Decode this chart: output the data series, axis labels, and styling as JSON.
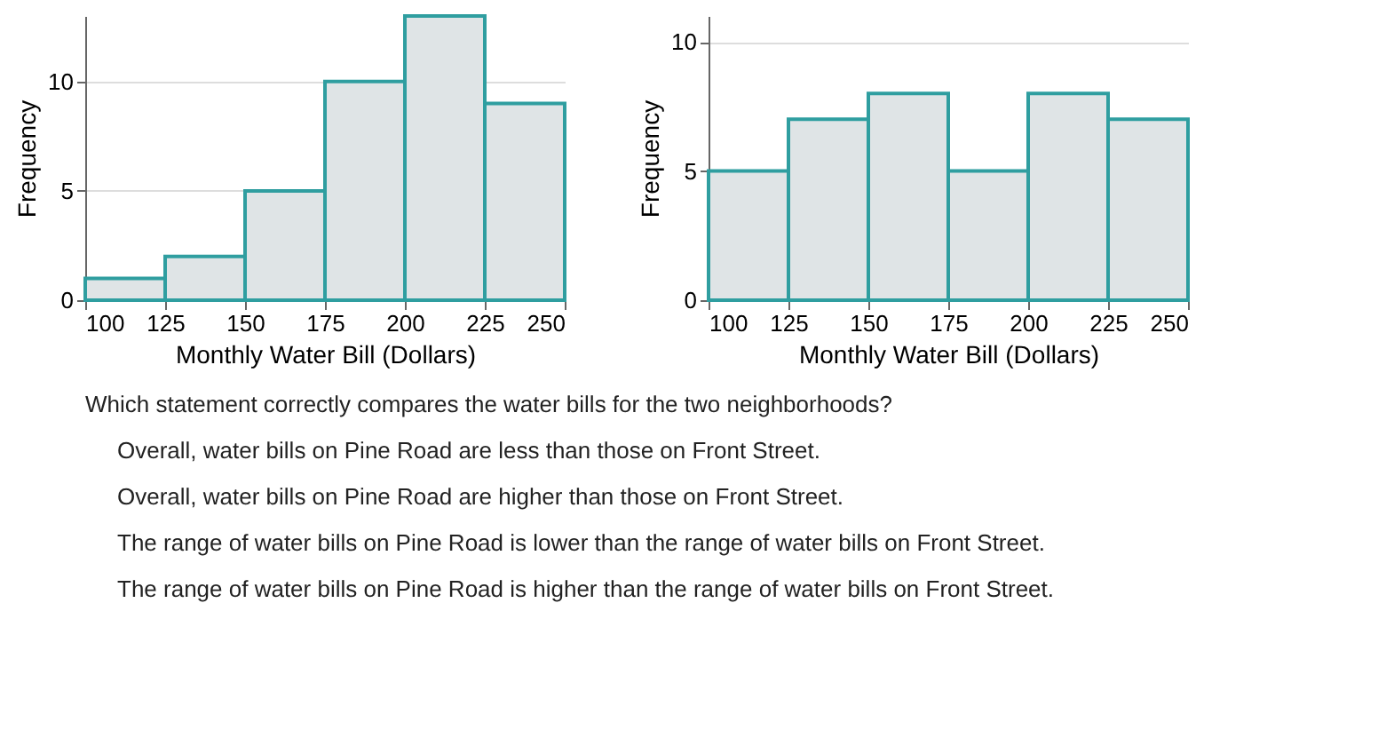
{
  "chart_data": [
    {
      "type": "histogram",
      "bins": [
        100,
        125,
        150,
        175,
        200,
        225,
        250
      ],
      "values": [
        1,
        2,
        5,
        10,
        13,
        9
      ],
      "color": "#dfe4e6",
      "xlabel": "Monthly Water Bill (Dollars)",
      "ylabel": "Frequency",
      "xlim": [
        100,
        250
      ],
      "xticks": [
        100,
        125,
        150,
        175,
        200,
        225,
        250
      ],
      "ylim": [
        0,
        13
      ],
      "yticks": [
        0,
        5,
        10
      ],
      "grid": "y"
    },
    {
      "type": "histogram",
      "bins": [
        100,
        125,
        150,
        175,
        200,
        225,
        250
      ],
      "values": [
        5,
        7,
        8,
        5,
        8,
        7
      ],
      "color": "#dfe4e6",
      "xlabel": "Monthly Water Bill (Dollars)",
      "ylabel": "Frequency",
      "xlim": [
        100,
        250
      ],
      "xticks": [
        100,
        125,
        150,
        175,
        200,
        225,
        250
      ],
      "ylim": [
        0,
        11
      ],
      "yticks": [
        0,
        5,
        10
      ],
      "grid": "y",
      "annotations": [
        "Which statement correctly compares the water bills for the two neighborhoods?",
        "Overall, water bills on Pine Road are less than those on Front Street.",
        "Overall, water bills on Pine Road are higher than those on Front Street.",
        "The range of water bills on Pine Road is lower than the range of water bills on Front Street.",
        "The range of water bills on Pine Road is higher than the range of water bills on Front Street."
      ]
    }
  ]
}
